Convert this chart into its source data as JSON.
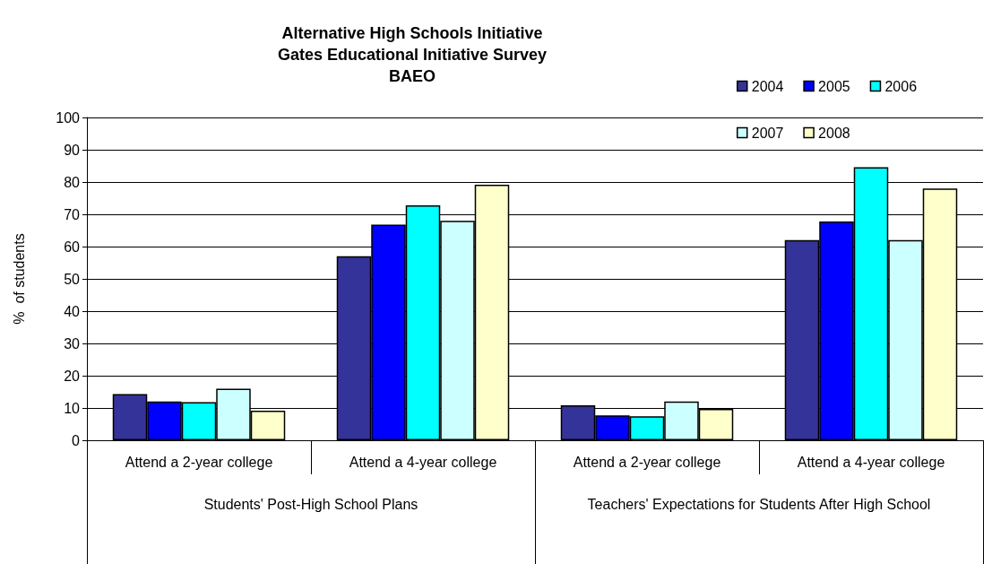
{
  "chart_data": {
    "type": "bar",
    "title": "Alternative High Schools Initiative\nGates Educational Initiative Survey\nBAEO",
    "ylabel": "%  of students",
    "categories": [
      "Attend a 2-year college",
      "Attend a 4-year college",
      "Attend a 2-year college",
      "Attend a 4-year college"
    ],
    "annotations": [
      "Students' Post-High School Plans",
      "Teachers' Expectations for Students After High School"
    ],
    "series": [
      {
        "name": "2004",
        "color": "#333399",
        "values": [
          14.3,
          57,
          10.8,
          62
        ]
      },
      {
        "name": "2005",
        "color": "#0000ff",
        "values": [
          12,
          66.8,
          7.7,
          67.8
        ]
      },
      {
        "name": "2006",
        "color": "#00ffff",
        "values": [
          11.8,
          72.8,
          7.4,
          84.6
        ]
      },
      {
        "name": "2007",
        "color": "#ccffff",
        "values": [
          16,
          68,
          12,
          62
        ]
      },
      {
        "name": "2008",
        "color": "#ffffcc",
        "values": [
          9.2,
          79.2,
          9.7,
          78
        ]
      }
    ],
    "ylim": [
      0,
      100
    ],
    "yticks": [
      0,
      10,
      20,
      30,
      40,
      50,
      60,
      70,
      80,
      90,
      100
    ],
    "grid": "y",
    "legend": "top right"
  }
}
